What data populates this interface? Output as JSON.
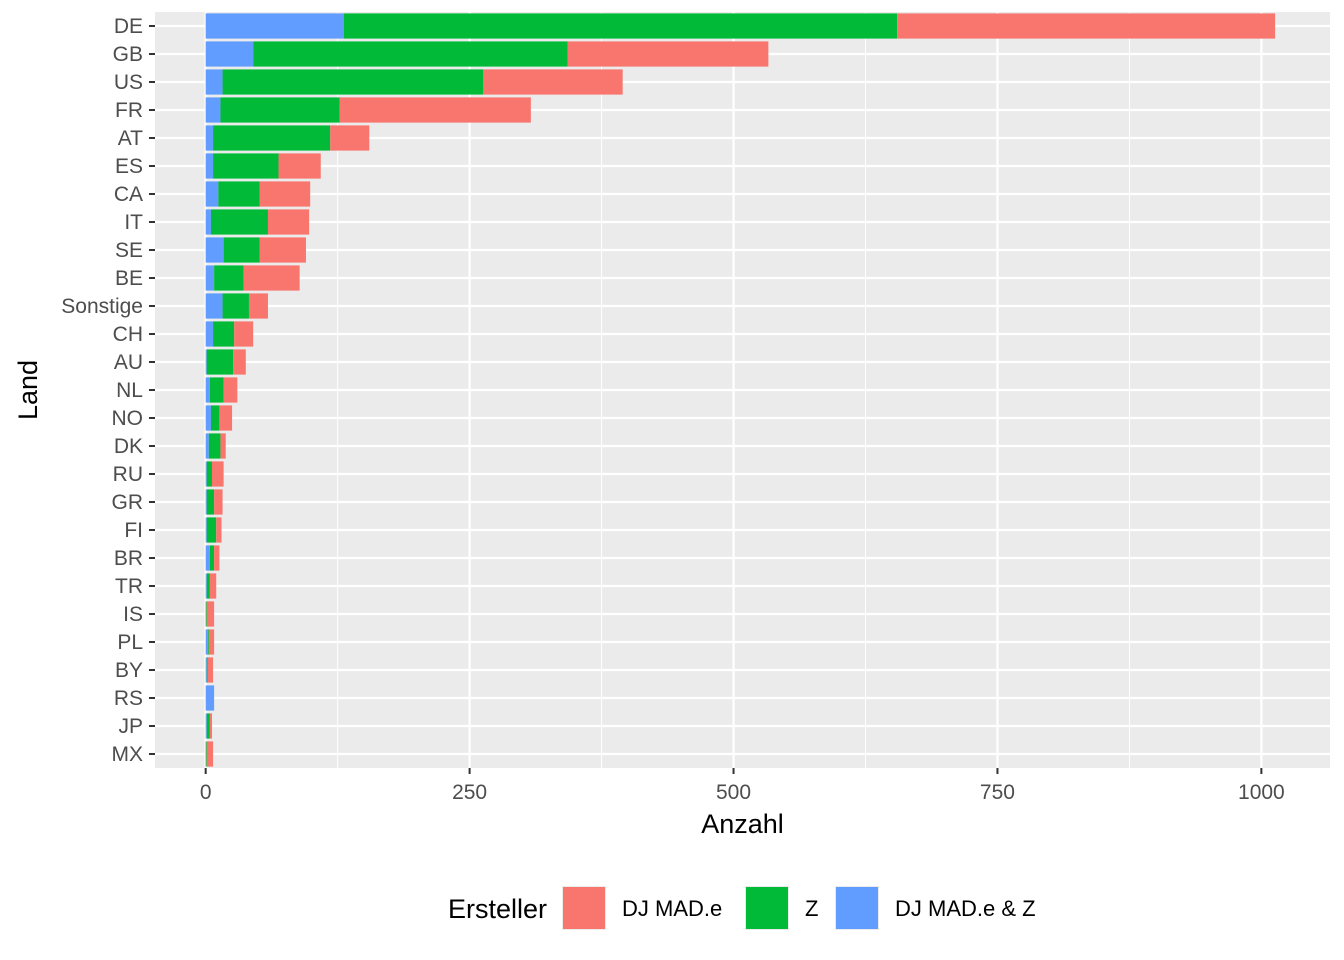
{
  "chart_data": {
    "type": "bar",
    "orientation": "horizontal",
    "stacked": true,
    "xlabel": "Anzahl",
    "ylabel": "Land",
    "xlim": [
      -48,
      1065
    ],
    "xticks": [
      0,
      250,
      500,
      750,
      1000
    ],
    "categories": [
      "DE",
      "GB",
      "US",
      "FR",
      "AT",
      "ES",
      "CA",
      "IT",
      "SE",
      "BE",
      "Sonstige",
      "CH",
      "AU",
      "NL",
      "NO",
      "DK",
      "RU",
      "GR",
      "FI",
      "BR",
      "TR",
      "IS",
      "PL",
      "BY",
      "RS",
      "JP",
      "MX"
    ],
    "series": [
      {
        "name": "DJ MAD.e & Z",
        "color": "#619CFF",
        "values": [
          131,
          45,
          16,
          14,
          7,
          7,
          12,
          5,
          17,
          8,
          16,
          7,
          1,
          4,
          5,
          3,
          1,
          1,
          1,
          4,
          1,
          0,
          2,
          1,
          8,
          1,
          0
        ]
      },
      {
        "name": "Z",
        "color": "#00BA38",
        "values": [
          524,
          298,
          247,
          113,
          111,
          62,
          39,
          54,
          34,
          28,
          25,
          20,
          25,
          13,
          8,
          11,
          5,
          7,
          9,
          4,
          3,
          1,
          1,
          1,
          0,
          3,
          1
        ]
      },
      {
        "name": "DJ MAD.e",
        "color": "#F8766D",
        "values": [
          358,
          190,
          132,
          181,
          37,
          40,
          48,
          39,
          44,
          53,
          18,
          18,
          12,
          13,
          12,
          5,
          11,
          8,
          5,
          5,
          6,
          7,
          5,
          5,
          0,
          2,
          6
        ]
      }
    ],
    "legend": {
      "title": "Ersteller",
      "position": "bottom",
      "entries": [
        "DJ MAD.e",
        "Z",
        "DJ MAD.e & Z"
      ]
    },
    "grid": true,
    "panel_background": "#EBEBEB"
  }
}
